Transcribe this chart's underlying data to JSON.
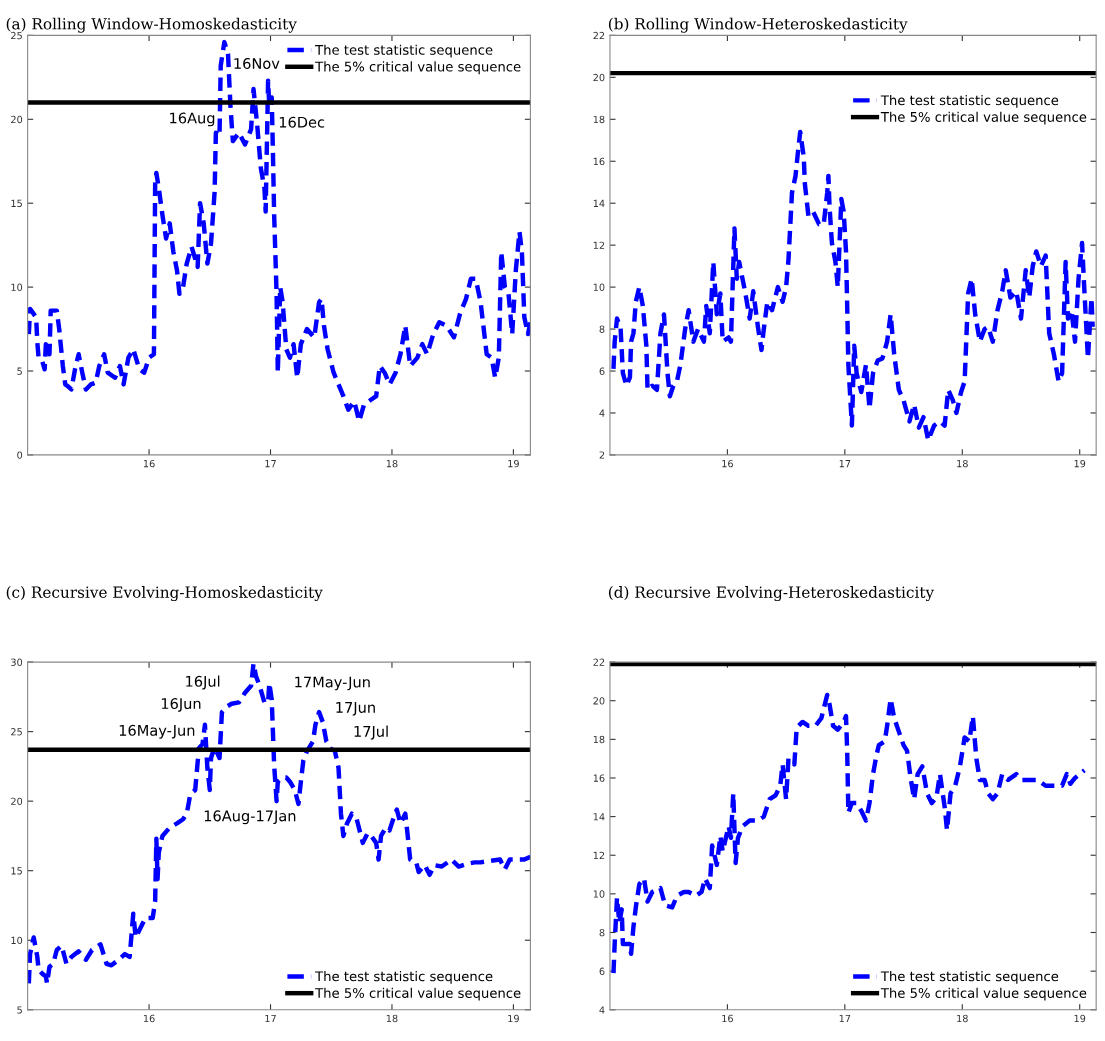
{
  "chart_data": [
    {
      "type": "line",
      "title": "(a) Rolling Window-Homoskedasticity",
      "xlim": [
        15.0,
        19.14
      ],
      "xticks": [
        16,
        17,
        18,
        19
      ],
      "ylim": [
        0,
        25
      ],
      "yticks": [
        0,
        5,
        10,
        15,
        20,
        25
      ],
      "legend": "top right",
      "series": [
        {
          "name": "The test statistic sequence",
          "color": "#0000ff",
          "line_style": "dashed",
          "x": [
            15.01,
            15.02,
            15.07,
            15.08,
            15.09,
            15.12,
            15.14,
            15.15,
            15.18,
            15.19,
            15.24,
            15.26,
            15.29,
            15.31,
            15.33,
            15.36,
            15.39,
            15.42,
            15.45,
            15.48,
            15.52,
            15.56,
            15.59,
            15.63,
            15.66,
            15.72,
            15.76,
            15.79,
            15.83,
            15.87,
            15.92,
            15.96,
            16.0,
            16.04,
            16.05,
            16.06,
            16.08,
            16.11,
            16.14,
            16.17,
            16.2,
            16.23,
            16.25,
            16.28,
            16.31,
            16.35,
            16.4,
            16.42,
            16.45,
            16.48,
            16.51,
            16.54,
            16.55,
            16.58,
            16.59,
            16.62,
            16.65,
            16.67,
            16.69,
            16.74,
            16.79,
            16.84,
            16.86,
            16.89,
            16.92,
            16.95,
            16.96,
            16.98,
            16.99,
            17.01,
            17.02,
            17.03,
            17.05,
            17.06,
            17.08,
            17.1,
            17.13,
            17.16,
            17.19,
            17.22,
            17.25,
            17.3,
            17.36,
            17.4,
            17.42,
            17.44,
            17.47,
            17.52,
            17.56,
            17.6,
            17.64,
            17.69,
            17.73,
            17.77,
            17.81,
            17.87,
            17.9,
            17.94,
            17.98,
            18.03,
            18.07,
            18.11,
            18.15,
            18.21,
            18.25,
            18.29,
            18.34,
            18.39,
            18.45,
            18.51,
            18.56,
            18.61,
            18.65,
            18.69,
            18.73,
            18.78,
            18.82,
            18.85,
            18.88,
            18.9,
            18.93,
            18.96,
            18.99,
            19.02,
            19.05,
            19.07,
            19.09,
            19.12,
            19.14
          ],
          "values": [
            7.2,
            8.7,
            8.2,
            6.7,
            5.8,
            5.6,
            5.1,
            6.6,
            6.0,
            8.6,
            8.6,
            7.5,
            5.3,
            4.2,
            4.1,
            3.9,
            5.1,
            6.0,
            4.9,
            3.9,
            4.2,
            4.3,
            5.3,
            6.0,
            4.9,
            4.6,
            5.3,
            4.2,
            5.8,
            6.3,
            5.1,
            4.9,
            5.8,
            6.0,
            16.1,
            16.8,
            15.9,
            14.3,
            12.9,
            13.8,
            12.1,
            11.0,
            9.6,
            10.0,
            11.4,
            12.4,
            11.2,
            15.0,
            13.8,
            11.4,
            12.6,
            15.7,
            19.2,
            19.0,
            23.2,
            24.6,
            23.9,
            20.8,
            18.7,
            19.2,
            18.5,
            19.4,
            21.8,
            19.7,
            17.1,
            15.9,
            14.5,
            22.3,
            20.8,
            21.3,
            18.0,
            14.3,
            9.6,
            4.9,
            10.0,
            9.1,
            6.3,
            5.8,
            6.6,
            4.6,
            6.6,
            7.5,
            7.0,
            9.1,
            9.3,
            7.7,
            6.3,
            4.9,
            4.2,
            3.5,
            2.7,
            3.2,
            2.0,
            3.0,
            3.2,
            3.5,
            5.3,
            4.9,
            4.2,
            4.9,
            6.0,
            7.7,
            5.3,
            5.8,
            6.6,
            6.0,
            7.2,
            7.9,
            7.7,
            7.0,
            8.4,
            9.3,
            10.5,
            10.5,
            9.1,
            6.0,
            5.8,
            4.6,
            5.8,
            12.1,
            10.0,
            9.6,
            7.2,
            11.0,
            13.3,
            12.1,
            8.2,
            7.2,
            7.9
          ]
        }
      ],
      "ref_lines": [
        {
          "axis": "y",
          "value": 21.0,
          "label": "The 5% critical value sequence",
          "color": "#000000",
          "line_style": "solid"
        }
      ],
      "annotations": [
        "16Nov",
        "16Aug",
        "16Dec"
      ]
    },
    {
      "type": "line",
      "title": "(b) Rolling Window-Heteroskedasticity",
      "xlim": [
        15.0,
        19.14
      ],
      "xticks": [
        16,
        17,
        18,
        19
      ],
      "ylim": [
        2,
        22
      ],
      "yticks": [
        2,
        4,
        6,
        8,
        10,
        12,
        14,
        16,
        18,
        20,
        22
      ],
      "legend": "top right",
      "series": [
        {
          "name": "The test statistic sequence",
          "color": "#0000ff",
          "line_style": "dashed",
          "x": [
            15.03,
            15.04,
            15.06,
            15.09,
            15.11,
            15.14,
            15.17,
            15.18,
            15.2,
            15.22,
            15.25,
            15.28,
            15.31,
            15.32,
            15.36,
            15.4,
            15.43,
            15.46,
            15.49,
            15.51,
            15.54,
            15.57,
            15.6,
            15.64,
            15.67,
            15.71,
            15.75,
            15.8,
            15.82,
            15.85,
            15.88,
            15.91,
            15.94,
            15.96,
            16.01,
            16.03,
            16.06,
            16.08,
            16.1,
            16.15,
            16.19,
            16.22,
            16.26,
            16.29,
            16.31,
            16.34,
            16.38,
            16.43,
            16.47,
            16.5,
            16.52,
            16.55,
            16.58,
            16.6,
            16.62,
            16.65,
            16.66,
            16.69,
            16.73,
            16.78,
            16.82,
            16.85,
            16.86,
            16.87,
            16.89,
            16.92,
            16.94,
            16.97,
            16.99,
            17.01,
            17.02,
            17.03,
            17.06,
            17.08,
            17.1,
            17.14,
            17.18,
            17.21,
            17.24,
            17.28,
            17.32,
            17.36,
            17.39,
            17.42,
            17.46,
            17.5,
            17.55,
            17.59,
            17.63,
            17.67,
            17.71,
            17.76,
            17.81,
            17.85,
            17.88,
            17.92,
            17.95,
            17.99,
            18.02,
            18.05,
            18.08,
            18.11,
            18.15,
            18.19,
            18.22,
            18.26,
            18.3,
            18.34,
            18.37,
            18.41,
            18.46,
            18.5,
            18.54,
            18.57,
            18.6,
            18.63,
            18.67,
            18.71,
            18.74,
            18.78,
            18.82,
            18.85,
            18.88,
            18.9,
            18.93,
            18.96,
            18.99,
            19.02,
            19.04,
            19.07,
            19.1,
            19.11
          ],
          "values": [
            6.1,
            7.4,
            8.5,
            8.1,
            5.9,
            5.3,
            5.7,
            7.4,
            7.8,
            9.3,
            10.0,
            9.1,
            7.2,
            5.1,
            5.3,
            5.1,
            7.8,
            8.7,
            5.9,
            4.8,
            5.3,
            5.5,
            6.3,
            8.0,
            8.9,
            7.4,
            8.0,
            7.4,
            9.1,
            7.8,
            11.2,
            8.7,
            9.7,
            7.4,
            7.6,
            7.4,
            12.8,
            10.4,
            11.2,
            9.8,
            8.5,
            9.8,
            8.1,
            7.0,
            8.0,
            9.3,
            8.9,
            10.0,
            9.3,
            10.0,
            11.3,
            14.5,
            15.3,
            16.4,
            17.4,
            16.2,
            14.9,
            13.4,
            13.6,
            13.0,
            13.0,
            14.5,
            15.3,
            13.8,
            12.1,
            11.2,
            10.0,
            14.2,
            13.6,
            11.7,
            9.1,
            6.3,
            3.4,
            7.2,
            5.9,
            5.0,
            6.3,
            4.2,
            5.9,
            6.5,
            6.6,
            7.4,
            8.7,
            6.8,
            5.1,
            4.6,
            3.6,
            4.4,
            3.3,
            3.8,
            2.7,
            3.4,
            3.6,
            3.4,
            5.1,
            4.6,
            4.0,
            5.0,
            5.5,
            9.7,
            10.4,
            8.7,
            7.4,
            8.0,
            8.1,
            7.4,
            8.9,
            9.8,
            10.8,
            9.5,
            9.8,
            8.5,
            10.8,
            9.5,
            11.0,
            11.7,
            11.0,
            11.5,
            7.8,
            6.8,
            5.5,
            5.9,
            11.2,
            8.5,
            8.9,
            7.4,
            10.4,
            12.1,
            9.8,
            6.6,
            9.5,
            8.1
          ]
        }
      ],
      "ref_lines": [
        {
          "axis": "y",
          "value": 20.2,
          "label": "The 5% critical value sequence",
          "color": "#000000",
          "line_style": "solid"
        }
      ]
    },
    {
      "type": "line",
      "title": "(c) Recursive Evolving-Homoskedasticity",
      "xlim": [
        15.0,
        19.14
      ],
      "xticks": [
        16,
        17,
        18,
        19
      ],
      "ylim": [
        5,
        30
      ],
      "yticks": [
        5,
        10,
        15,
        20,
        25,
        30
      ],
      "legend": "bottom right",
      "series": [
        {
          "name": "The test statistic sequence",
          "color": "#0000ff",
          "line_style": "dashed",
          "x": [
            15.01,
            15.02,
            15.05,
            15.08,
            15.09,
            15.12,
            15.15,
            15.16,
            15.18,
            15.21,
            15.24,
            15.28,
            15.32,
            15.36,
            15.42,
            15.48,
            15.53,
            15.6,
            15.65,
            15.69,
            15.75,
            15.8,
            15.84,
            15.87,
            15.89,
            15.93,
            15.97,
            16.03,
            16.05,
            16.06,
            16.07,
            16.08,
            16.11,
            16.17,
            16.23,
            16.28,
            16.31,
            16.34,
            16.38,
            16.41,
            16.44,
            16.46,
            16.48,
            16.5,
            16.51,
            16.54,
            16.58,
            16.6,
            16.64,
            16.68,
            16.74,
            16.79,
            16.84,
            16.86,
            16.88,
            16.91,
            16.95,
            16.98,
            16.99,
            17.01,
            17.03,
            17.05,
            17.06,
            17.1,
            17.13,
            17.16,
            17.2,
            17.23,
            17.25,
            17.27,
            17.3,
            17.35,
            17.37,
            17.4,
            17.43,
            17.46,
            17.49,
            17.53,
            17.56,
            17.58,
            17.6,
            17.63,
            17.67,
            17.71,
            17.76,
            17.8,
            17.83,
            17.87,
            17.89,
            17.91,
            17.95,
            17.98,
            18.01,
            18.04,
            18.07,
            18.11,
            18.13,
            18.15,
            18.2,
            18.22,
            18.27,
            18.31,
            18.35,
            18.41,
            18.49,
            18.55,
            18.62,
            18.68,
            18.73,
            18.8,
            18.89,
            18.93,
            18.97,
            19.03,
            19.09,
            19.14
          ],
          "values": [
            6.9,
            9.0,
            10.2,
            8.8,
            7.9,
            7.6,
            7.4,
            6.9,
            8.1,
            8.3,
            9.3,
            9.6,
            8.3,
            8.8,
            9.2,
            8.6,
            9.3,
            9.7,
            8.3,
            8.2,
            8.6,
            9.0,
            8.8,
            11.9,
            10.2,
            10.9,
            11.6,
            11.6,
            12.8,
            17.3,
            14.4,
            16.3,
            17.5,
            18.1,
            18.4,
            18.7,
            19.1,
            20.5,
            20.8,
            23.8,
            24.1,
            25.5,
            22.4,
            20.8,
            23.1,
            23.9,
            23.1,
            26.4,
            26.8,
            27.0,
            27.1,
            27.8,
            28.3,
            29.9,
            29.0,
            28.3,
            27.1,
            27.1,
            28.5,
            27.3,
            22.6,
            20.0,
            21.4,
            21.7,
            21.7,
            21.4,
            20.8,
            19.8,
            21.4,
            22.9,
            23.6,
            24.3,
            25.5,
            26.4,
            25.7,
            24.3,
            23.8,
            23.6,
            22.4,
            19.1,
            17.5,
            18.4,
            19.1,
            18.7,
            17.0,
            17.7,
            17.5,
            17.0,
            15.8,
            17.5,
            18.1,
            17.9,
            18.7,
            19.4,
            18.4,
            19.1,
            17.5,
            15.8,
            15.6,
            14.9,
            15.4,
            14.7,
            15.4,
            15.3,
            15.8,
            15.3,
            15.5,
            15.6,
            15.6,
            15.7,
            15.8,
            15.1,
            15.8,
            15.8,
            15.8,
            16.0
          ]
        }
      ],
      "ref_lines": [
        {
          "axis": "y",
          "value": 23.7,
          "label": "The 5% critical value sequence",
          "color": "#000000",
          "line_style": "solid"
        }
      ],
      "annotations": [
        "16Jul",
        "16Jun",
        "16May-Jun",
        "16Aug-17Jan",
        "17May-Jun",
        "17Jun",
        "17Jul"
      ]
    },
    {
      "type": "line",
      "title": "(d) Recursive Evolving-Heteroskedasticity",
      "xlim": [
        15.0,
        19.14
      ],
      "xticks": [
        16,
        17,
        18,
        19
      ],
      "ylim": [
        4,
        22
      ],
      "yticks": [
        4,
        6,
        8,
        10,
        12,
        14,
        16,
        18,
        20,
        22
      ],
      "legend": "bottom right",
      "series": [
        {
          "name": "The test statistic sequence",
          "color": "#0000ff",
          "line_style": "dashed",
          "x": [
            15.03,
            15.04,
            15.06,
            15.08,
            15.1,
            15.11,
            15.14,
            15.17,
            15.18,
            15.2,
            15.22,
            15.25,
            15.29,
            15.32,
            15.36,
            15.43,
            15.47,
            15.53,
            15.57,
            15.63,
            15.67,
            15.73,
            15.78,
            15.81,
            15.85,
            15.87,
            15.91,
            15.94,
            15.96,
            16.01,
            16.03,
            16.05,
            16.07,
            16.09,
            16.13,
            16.19,
            16.26,
            16.31,
            16.36,
            16.41,
            16.45,
            16.47,
            16.5,
            16.52,
            16.57,
            16.59,
            16.64,
            16.69,
            16.75,
            16.8,
            16.85,
            16.87,
            16.9,
            16.94,
            16.99,
            17.01,
            17.02,
            17.03,
            17.06,
            17.1,
            17.14,
            17.18,
            17.21,
            17.24,
            17.27,
            17.29,
            17.34,
            17.36,
            17.39,
            17.42,
            17.46,
            17.5,
            17.53,
            17.56,
            17.59,
            17.62,
            17.66,
            17.7,
            17.74,
            17.78,
            17.81,
            17.85,
            17.87,
            17.9,
            17.94,
            17.98,
            18.02,
            18.06,
            18.09,
            18.12,
            18.15,
            18.19,
            18.22,
            18.26,
            18.3,
            18.34,
            18.39,
            18.46,
            18.5,
            18.57,
            18.64,
            18.71,
            18.76,
            18.85,
            18.89,
            18.92,
            18.96,
            19.0,
            19.04
          ],
          "values": [
            5.9,
            7.4,
            9.8,
            8.5,
            9.2,
            7.4,
            7.4,
            7.4,
            6.9,
            8.3,
            9.3,
            10.5,
            10.8,
            9.6,
            10.1,
            10.3,
            9.4,
            9.3,
            9.9,
            10.1,
            10.1,
            9.9,
            10.1,
            10.8,
            10.3,
            12.5,
            11.5,
            13.0,
            12.2,
            13.5,
            12.9,
            15.2,
            11.6,
            12.9,
            13.5,
            13.8,
            13.8,
            14.0,
            14.9,
            15.1,
            15.6,
            16.7,
            14.9,
            17.0,
            16.7,
            18.6,
            18.9,
            18.7,
            18.7,
            19.1,
            20.3,
            19.8,
            18.7,
            18.5,
            18.9,
            19.2,
            17.4,
            14.2,
            14.7,
            14.7,
            14.3,
            13.8,
            14.7,
            16.2,
            17.2,
            17.7,
            17.9,
            18.7,
            20.1,
            19.1,
            18.4,
            17.7,
            17.4,
            16.0,
            14.9,
            16.2,
            16.6,
            15.2,
            14.7,
            15.0,
            16.2,
            14.5,
            13.3,
            15.2,
            15.6,
            16.6,
            18.1,
            17.9,
            19.2,
            17.0,
            15.9,
            15.9,
            15.2,
            14.9,
            15.2,
            16.2,
            15.9,
            16.2,
            15.9,
            15.9,
            15.9,
            15.6,
            15.6,
            15.6,
            16.2,
            15.7,
            16.0,
            16.2,
            16.4
          ]
        }
      ],
      "ref_lines": [
        {
          "axis": "y",
          "value": 21.9,
          "label": "The 5% critical value sequence",
          "color": "#000000",
          "line_style": "solid"
        }
      ]
    }
  ]
}
